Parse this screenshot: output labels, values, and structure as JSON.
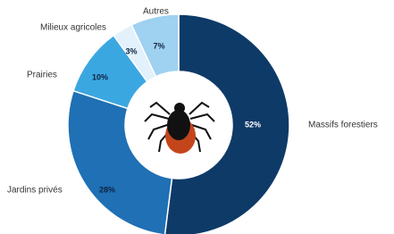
{
  "chart_data": {
    "type": "donut",
    "categories": [
      "Massifs forestiers",
      "Jardins privés",
      "Prairies",
      "Milieux agricoles",
      "Autres"
    ],
    "values": [
      52,
      28,
      10,
      3,
      7
    ],
    "value_labels": [
      "52%",
      "28%",
      "10%",
      "3%",
      "7%"
    ],
    "colors": [
      "#0e3a68",
      "#1f70b4",
      "#3ba7e1",
      "#e2f1fb",
      "#9fd1f0"
    ]
  }
}
